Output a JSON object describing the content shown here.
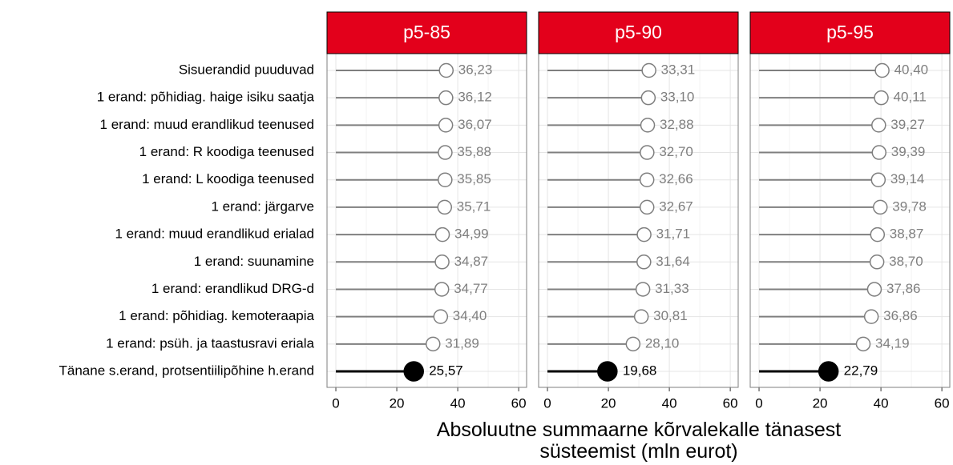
{
  "chart_data": {
    "type": "lollipop",
    "categories": [
      "Sisuerandid puuduvad",
      "1 erand: põhidiag. haige isiku saatja",
      "1 erand: muud erandlikud teenused",
      "1 erand: R koodiga teenused",
      "1 erand: L koodiga teenused",
      "1 erand: järgarve",
      "1 erand: muud erandlikud erialad",
      "1 erand: suunamine",
      "1 erand: erandlikud DRG-d",
      "1 erand: põhidiag. kemoteraapia",
      "1 erand: psüh. ja taastusravi eriala",
      "Tänane s.erand, protsentiilipõhine h.erand"
    ],
    "xlabel": "Absoluutne summaarne kõrvalekalle tänasest süsteemist (mln eurot)",
    "xlim": [
      -2.9,
      62.6
    ],
    "xticks": [
      0,
      20,
      40,
      60
    ],
    "grid": true,
    "color": "#7f7f7f",
    "highlight_color": "#000000",
    "highlight_index": 11,
    "strip_color": "#e3001b",
    "panels": [
      {
        "title": "p5-85",
        "values": [
          36.23,
          36.12,
          36.07,
          35.88,
          35.85,
          35.71,
          34.99,
          34.87,
          34.77,
          34.4,
          31.89,
          25.57
        ],
        "value_labels": [
          "36,23",
          "36,12",
          "36,07",
          "35,88",
          "35,85",
          "35,71",
          "34,99",
          "34,87",
          "34,77",
          "34,40",
          "31,89",
          "25,57"
        ]
      },
      {
        "title": "p5-90",
        "values": [
          33.31,
          33.1,
          32.88,
          32.7,
          32.66,
          32.67,
          31.71,
          31.64,
          31.33,
          30.81,
          28.1,
          19.68
        ],
        "value_labels": [
          "33,31",
          "33,10",
          "32,88",
          "32,70",
          "32,66",
          "32,67",
          "31,71",
          "31,64",
          "31,33",
          "30,81",
          "28,10",
          "19,68"
        ]
      },
      {
        "title": "p5-95",
        "values": [
          40.4,
          40.11,
          39.27,
          39.39,
          39.14,
          39.78,
          38.87,
          38.7,
          37.86,
          36.86,
          34.19,
          22.79
        ],
        "value_labels": [
          "40,40",
          "40,11",
          "39,27",
          "39,39",
          "39,14",
          "39,78",
          "38,87",
          "38,70",
          "37,86",
          "36,86",
          "34,19",
          "22,79"
        ]
      }
    ]
  }
}
